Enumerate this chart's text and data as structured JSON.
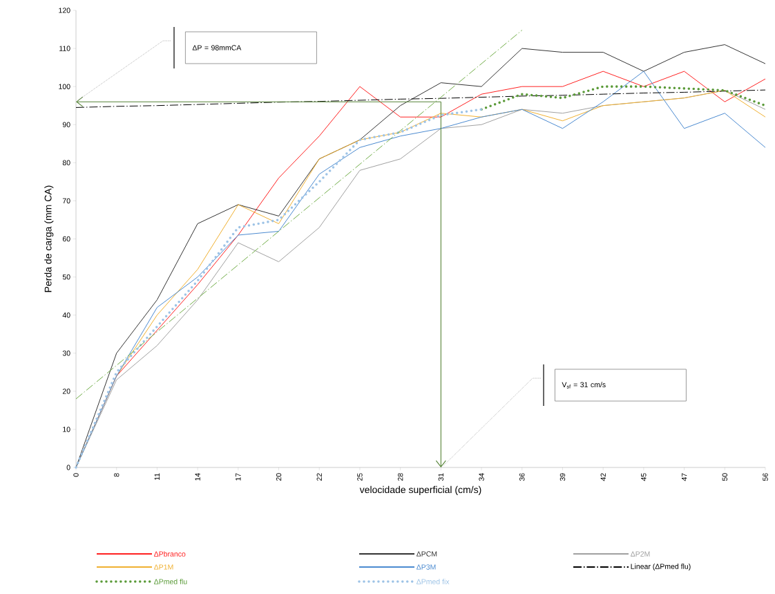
{
  "chart_data": {
    "type": "line",
    "xlabel": "velocidade superficial (cm/s)",
    "ylabel": "Perda de carga (mm CA)",
    "categories": [
      "0",
      "8",
      "11",
      "14",
      "17",
      "20",
      "22",
      "25",
      "28",
      "31",
      "34",
      "36",
      "39",
      "42",
      "45",
      "47",
      "50",
      "56"
    ],
    "ylim": [
      0,
      120
    ],
    "yticks": [
      0,
      10,
      20,
      30,
      40,
      50,
      60,
      70,
      80,
      90,
      100,
      110,
      120
    ],
    "legend": "bottom",
    "series": [
      {
        "name": "ΔPbranco",
        "color": "#ff2020",
        "line_style": "solid",
        "values": [
          0,
          24,
          36,
          48,
          61,
          76,
          87,
          100,
          92,
          92,
          98,
          100,
          100,
          104,
          100,
          104,
          96,
          102
        ]
      },
      {
        "name": "ΔPCM",
        "color": "#333333",
        "line_style": "solid",
        "values": [
          0,
          30,
          44,
          64,
          69,
          66,
          81,
          86,
          95,
          101,
          100,
          110,
          109,
          109,
          104,
          109,
          111,
          106
        ]
      },
      {
        "name": "ΔP2M",
        "color": "#a0a0a0",
        "line_style": "solid",
        "values": [
          0,
          23,
          32,
          44,
          59,
          54,
          63,
          78,
          81,
          89,
          90,
          94,
          93,
          95,
          96,
          97,
          99,
          94
        ]
      },
      {
        "name": "ΔP1M",
        "color": "#f0b030",
        "line_style": "solid",
        "values": [
          0,
          24,
          40,
          52,
          69,
          64,
          81,
          86,
          88,
          93,
          92,
          94,
          91,
          95,
          96,
          97,
          99,
          92
        ]
      },
      {
        "name": "ΔP3M",
        "color": "#4a8ad0",
        "line_style": "solid",
        "values": [
          0,
          24,
          42,
          50,
          61,
          62,
          77,
          84,
          87,
          89,
          92,
          94,
          89,
          96,
          104,
          89,
          93,
          84
        ]
      },
      {
        "name": "Linear (ΔPmed flu)",
        "color": "#000000",
        "line_style": "dashed",
        "values": [
          94.5,
          94.8,
          95.0,
          95.3,
          95.6,
          95.9,
          96.1,
          96.4,
          96.7,
          96.9,
          97.2,
          97.5,
          97.7,
          98.0,
          98.3,
          98.5,
          98.8,
          99.1
        ]
      },
      {
        "name": "ΔPmed flu",
        "color": "#5a9a38",
        "line_style": "dotted",
        "values": [
          null,
          null,
          null,
          null,
          null,
          null,
          null,
          null,
          null,
          null,
          94,
          98,
          97,
          100,
          100,
          99.5,
          99,
          95
        ]
      },
      {
        "name": "ΔPmed fix",
        "color": "#9dc3e6",
        "line_style": "dotted",
        "values": [
          0,
          25,
          37,
          49,
          63,
          65,
          75,
          86,
          88,
          92.5,
          94,
          null,
          null,
          null,
          null,
          null,
          null,
          null
        ]
      },
      {
        "color": "#70ad47",
        "line_style": "dashed",
        "values": [
          18,
          26.8,
          35.6,
          44.4,
          53.2,
          62,
          70.8,
          79.6,
          88.4,
          97.2,
          106,
          114.8,
          null,
          null,
          null,
          null,
          null,
          null
        ]
      }
    ],
    "ref_lines": [
      {
        "axis": "y",
        "value": 96,
        "color": "#548235"
      },
      {
        "axis": "x",
        "value": "31",
        "color": "#548235"
      }
    ],
    "annotations": [
      "ΔP = 98mmCA",
      "V$_{sf}$ = 31 cm/s"
    ]
  }
}
